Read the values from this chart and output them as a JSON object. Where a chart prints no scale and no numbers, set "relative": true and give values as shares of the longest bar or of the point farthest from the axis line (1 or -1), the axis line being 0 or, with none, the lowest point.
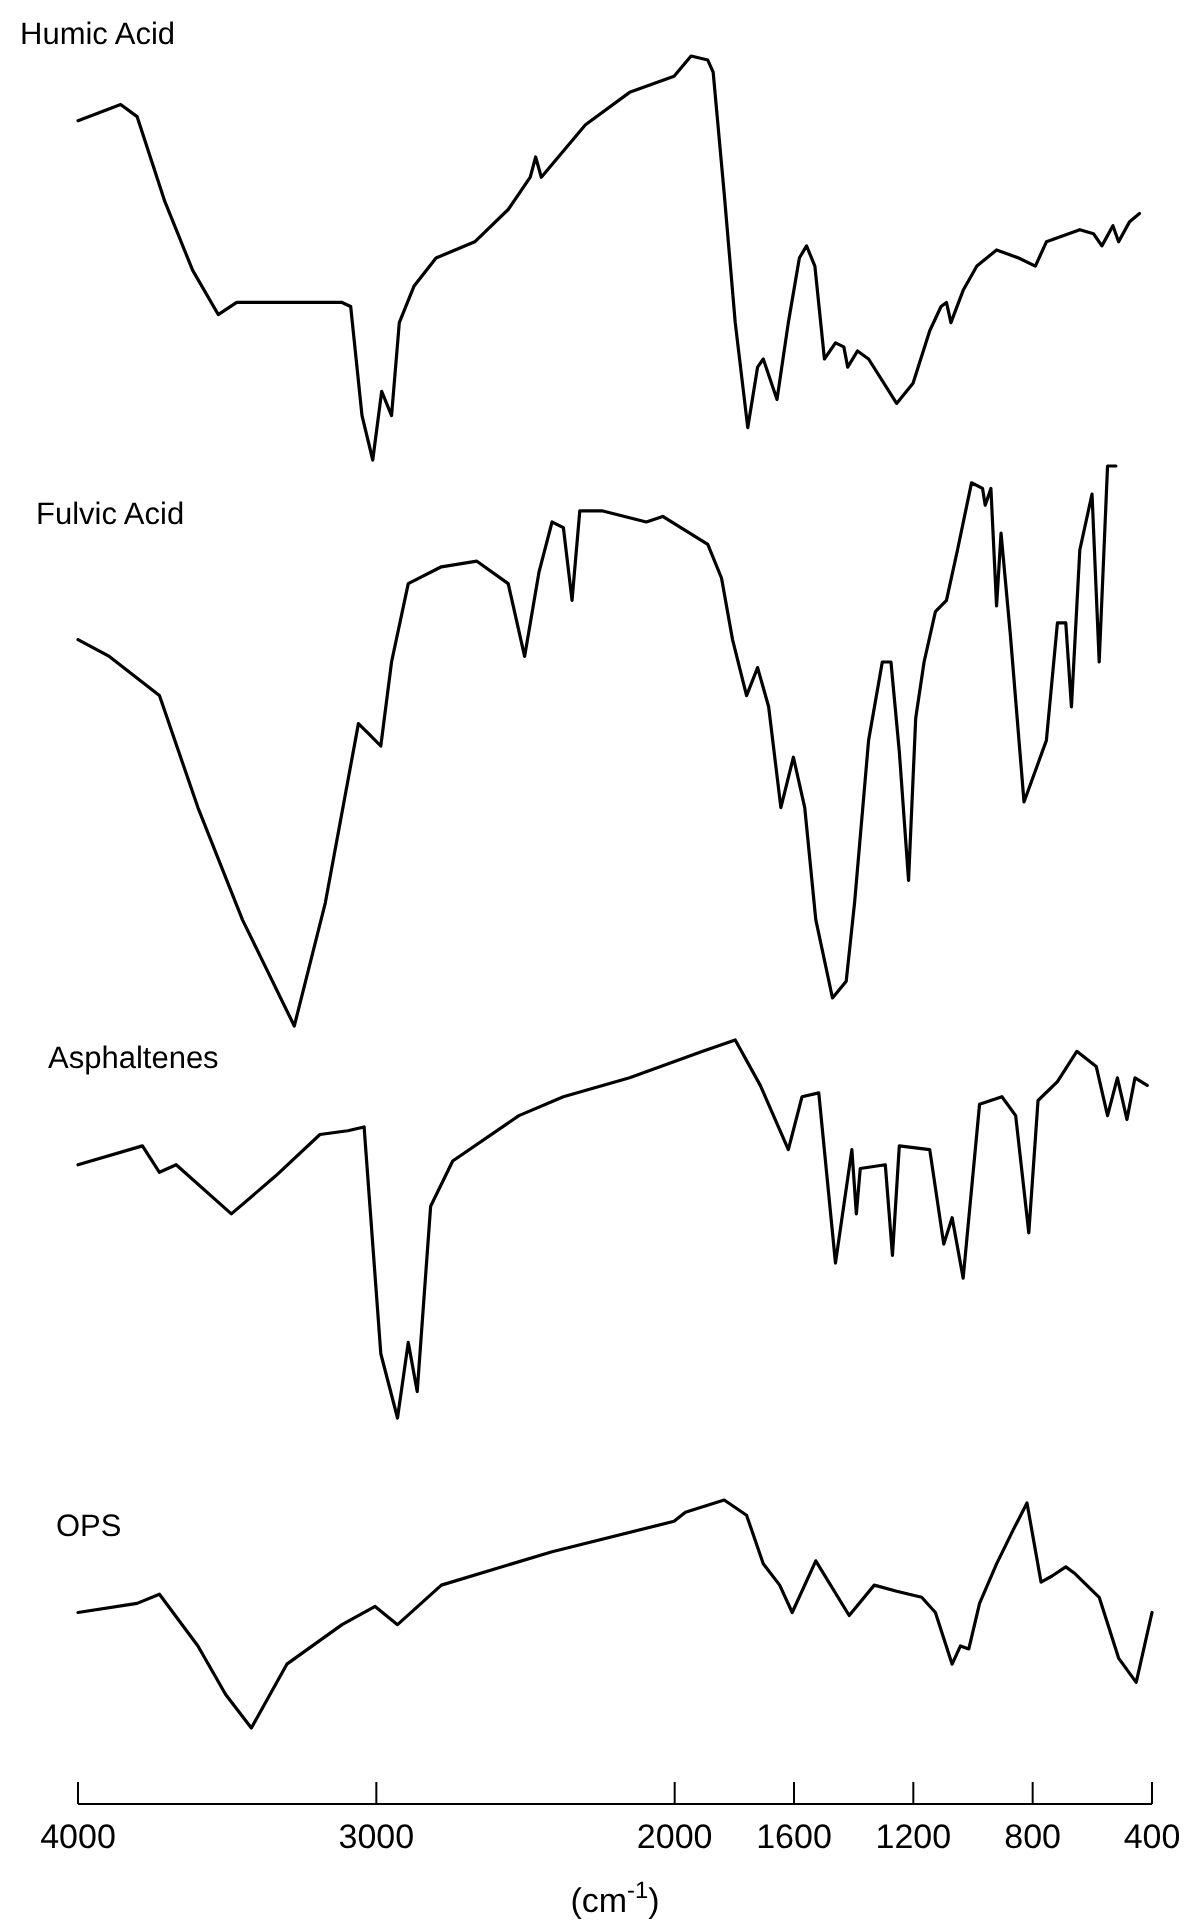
{
  "chart_data": [
    {
      "type": "line",
      "title": "Humic Acid",
      "relative": true,
      "xlim": [
        4000,
        400
      ],
      "tick_labels": false,
      "series": [
        {
          "color": "#000000",
          "x": [
            4000,
            3857,
            3802,
            3709,
            3616,
            3530,
            3468,
            3264,
            3115,
            3086,
            3048,
            3012,
            2982,
            2949,
            2923,
            2874,
            2800,
            2670,
            2558,
            2484,
            2466,
            2447,
            2299,
            2151,
            2002,
            1945,
            1889,
            1871,
            1834,
            1797,
            1755,
            1722,
            1703,
            1657,
            1619,
            1582,
            1558,
            1530,
            1498,
            1461,
            1433,
            1420,
            1387,
            1350,
            1256,
            1201,
            1145,
            1107,
            1089,
            1074,
            1033,
            987,
            921,
            847,
            791,
            754,
            642,
            596,
            568,
            531,
            512,
            475,
            442
          ],
          "values": [
            0.84,
            0.88,
            0.85,
            0.64,
            0.47,
            0.36,
            0.39,
            0.39,
            0.39,
            0.38,
            0.11,
            0,
            0.17,
            0.11,
            0.34,
            0.43,
            0.5,
            0.54,
            0.62,
            0.7,
            0.75,
            0.7,
            0.83,
            0.91,
            0.95,
            1.0,
            0.99,
            0.96,
            0.66,
            0.34,
            0.08,
            0.23,
            0.25,
            0.15,
            0.34,
            0.5,
            0.53,
            0.48,
            0.25,
            0.29,
            0.28,
            0.23,
            0.27,
            0.25,
            0.14,
            0.19,
            0.32,
            0.38,
            0.39,
            0.34,
            0.42,
            0.48,
            0.52,
            0.5,
            0.48,
            0.54,
            0.57,
            0.56,
            0.53,
            0.58,
            0.54,
            0.59,
            0.61
          ]
        }
      ]
    },
    {
      "type": "line",
      "title": "Fulvic Acid",
      "relative": true,
      "xlim": [
        4000,
        400
      ],
      "tick_labels": false,
      "series": [
        {
          "color": "#000000",
          "x": [
            4000,
            3895,
            3727,
            3598,
            3449,
            3275,
            3171,
            3060,
            3022,
            2985,
            2949,
            2893,
            2782,
            2663,
            2558,
            2503,
            2455,
            2411,
            2373,
            2344,
            2318,
            2244,
            2095,
            2040,
            1889,
            1843,
            1806,
            1759,
            1722,
            1685,
            1644,
            1602,
            1564,
            1527,
            1471,
            1425,
            1397,
            1350,
            1304,
            1275,
            1247,
            1216,
            1192,
            1164,
            1126,
            1089,
            1052,
            1005,
            968,
            959,
            940,
            921,
            906,
            875,
            829,
            754,
            717,
            689,
            670,
            642,
            601,
            577,
            549,
            521
          ],
          "values": [
            0.69,
            0.66,
            0.59,
            0.39,
            0.19,
            0,
            0.22,
            0.54,
            0.52,
            0.5,
            0.65,
            0.79,
            0.82,
            0.83,
            0.79,
            0.66,
            0.81,
            0.9,
            0.89,
            0.76,
            0.92,
            0.92,
            0.9,
            0.91,
            0.86,
            0.8,
            0.69,
            0.59,
            0.64,
            0.57,
            0.39,
            0.48,
            0.39,
            0.19,
            0.05,
            0.08,
            0.22,
            0.51,
            0.65,
            0.65,
            0.49,
            0.26,
            0.55,
            0.65,
            0.74,
            0.76,
            0.85,
            0.97,
            0.96,
            0.93,
            0.96,
            0.75,
            0.88,
            0.7,
            0.4,
            0.51,
            0.72,
            0.72,
            0.57,
            0.85,
            0.95,
            0.65,
            1.0,
            1.0
          ]
        }
      ]
    },
    {
      "type": "line",
      "title": "Asphaltenes",
      "relative": true,
      "xlim": [
        4000,
        400
      ],
      "tick_labels": false,
      "series": [
        {
          "color": "#000000",
          "x": [
            4000,
            3784,
            3727,
            3671,
            3486,
            3338,
            3189,
            3096,
            3041,
            2985,
            2929,
            2893,
            2863,
            2818,
            2744,
            2522,
            2373,
            2151,
            1906,
            1797,
            1713,
            1619,
            1573,
            1517,
            1461,
            1406,
            1391,
            1378,
            1294,
            1270,
            1247,
            1145,
            1098,
            1070,
            1033,
            978,
            903,
            857,
            813,
            782,
            717,
            652,
            587,
            549,
            516,
            484,
            457,
            416
          ],
          "values": [
            0.67,
            0.72,
            0.65,
            0.67,
            0.54,
            0.64,
            0.75,
            0.76,
            0.77,
            0.17,
            0,
            0.2,
            0.07,
            0.56,
            0.68,
            0.8,
            0.85,
            0.9,
            0.97,
            1.0,
            0.88,
            0.71,
            0.85,
            0.86,
            0.41,
            0.71,
            0.54,
            0.66,
            0.67,
            0.43,
            0.72,
            0.71,
            0.46,
            0.53,
            0.37,
            0.83,
            0.85,
            0.8,
            0.49,
            0.84,
            0.89,
            0.97,
            0.93,
            0.8,
            0.9,
            0.79,
            0.9,
            0.88
          ]
        }
      ]
    },
    {
      "type": "line",
      "title": "OPS",
      "relative": true,
      "xlim": [
        4000,
        400
      ],
      "xticks": [
        4000,
        3000,
        2000,
        1600,
        1200,
        800,
        400
      ],
      "xlabel": "(cm$^{-1}$)",
      "tick_labels": "x",
      "series": [
        {
          "color": "#000000",
          "x": [
            4000,
            3802,
            3727,
            3598,
            3505,
            3419,
            3300,
            3115,
            3004,
            2929,
            2782,
            2411,
            2002,
            1964,
            1834,
            1759,
            1703,
            1648,
            1606,
            1527,
            1415,
            1331,
            1256,
            1172,
            1126,
            1070,
            1042,
            1014,
            978,
            921,
            866,
            819,
            772,
            735,
            689,
            661,
            577,
            512,
            453,
            400
          ],
          "values": [
            0.63,
            0.66,
            0.69,
            0.52,
            0.36,
            0.25,
            0.46,
            0.59,
            0.65,
            0.59,
            0.72,
            0.83,
            0.93,
            0.96,
            1.0,
            0.95,
            0.79,
            0.72,
            0.63,
            0.8,
            0.62,
            0.72,
            0.7,
            0.68,
            0.63,
            0.46,
            0.52,
            0.51,
            0.66,
            0.79,
            0.9,
            0.99,
            0.73,
            0.75,
            0.78,
            0.76,
            0.68,
            0.48,
            0.4,
            0.63
          ]
        }
      ]
    }
  ]
}
